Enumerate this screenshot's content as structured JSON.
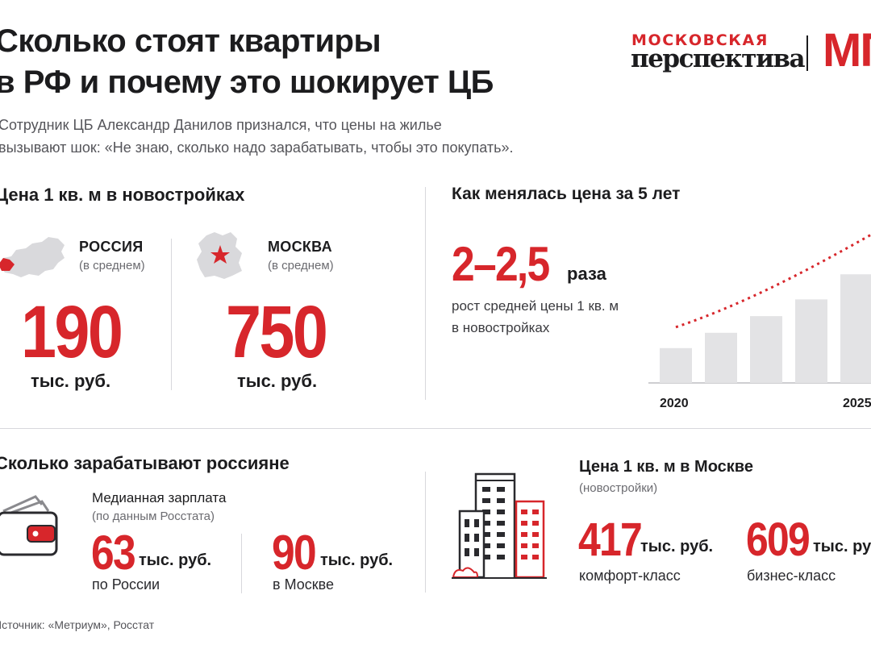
{
  "header": {
    "title_line1": "Сколько стоят квартиры",
    "title_line2": "в РФ и почему это шокирует ЦБ",
    "subtitle_line1": "Сотрудник ЦБ Александр Данилов признался, что цены на жилье",
    "subtitle_line2": "вызывают шок: «Не знаю, сколько надо зарабатывать, чтобы это покупать».",
    "logo_top": "МОСКОВСКАЯ",
    "logo_bottom": "перспектива",
    "logo_mark": "МП"
  },
  "price_section": {
    "title": "Цена 1 кв. м в новостройках",
    "russia": {
      "label": "РОССИЯ",
      "note": "(в среднем)",
      "value": "190",
      "unit": "тыс. руб."
    },
    "moscow": {
      "label": "МОСКВА",
      "note": "(в среднем)",
      "value": "750",
      "unit": "тыс. руб."
    }
  },
  "growth_section": {
    "title": "Как менялась цена за 5 лет",
    "multiplier": "2–2,5",
    "multiplier_unit": "раза",
    "caption_line1": "рост средней цены 1 кв. м",
    "caption_line2": "в новостройках"
  },
  "chart_data": {
    "type": "bar",
    "x": [
      2020,
      2021,
      2022,
      2023,
      2024,
      2025
    ],
    "tick_labels": [
      "2020",
      "2025"
    ],
    "values": [
      1.0,
      1.44,
      1.92,
      2.4,
      3.12,
      3.98
    ],
    "ylim": [
      0,
      4.4
    ],
    "trend_arrow": true,
    "grid": false
  },
  "income_section": {
    "title": "Сколько зарабатывают россияне",
    "label_line1": "Медианная зарплата",
    "label_line2": "(по данным Росстата)",
    "russia": {
      "value": "63",
      "unit": "тыс. руб.",
      "caption": "по России"
    },
    "moscow": {
      "value": "90",
      "unit": "тыс. руб.",
      "caption": "в Москве"
    }
  },
  "moscow_price_section": {
    "title": "Цена 1 кв. м в Москве",
    "note": "(новостройки)",
    "comfort": {
      "value": "417",
      "unit": "тыс. руб.",
      "caption": "комфорт-класс"
    },
    "business": {
      "value": "609",
      "unit": "тыс. руб.",
      "caption": "бизнес-класс"
    }
  },
  "source": "Источник: «Метриум», Росстат",
  "colors": {
    "accent": "#d7262b",
    "bar": "#e3e3e5",
    "text": "#1c1c1e",
    "muted": "#6b6b70"
  }
}
